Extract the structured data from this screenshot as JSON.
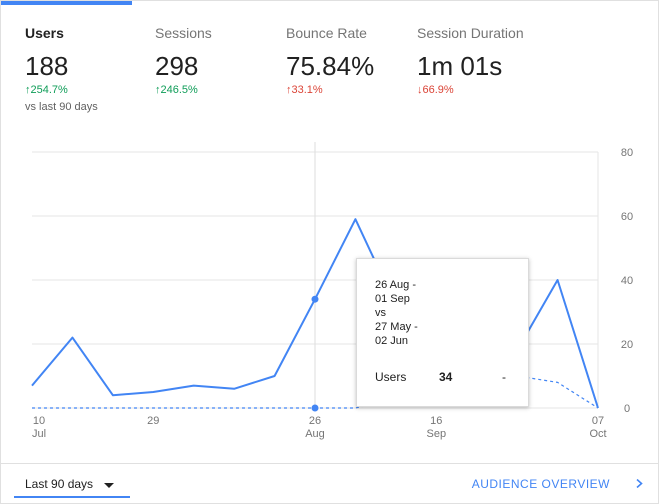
{
  "metrics": [
    {
      "label": "Users",
      "value": "188",
      "change": "↑254.7%",
      "active": true
    },
    {
      "label": "Sessions",
      "value": "298",
      "change": "↑246.5%",
      "active": false
    },
    {
      "label": "Bounce Rate",
      "value": "75.84%",
      "change": "↑33.1%",
      "active": false
    },
    {
      "label": "Session Duration",
      "value": "1m 01s",
      "change": "↓66.9%",
      "active": false
    }
  ],
  "compare_text": "vs last 90 days",
  "colors": {
    "accent": "#4285f4",
    "positive": "#0f9d58",
    "negative": "#db4437",
    "grid": "#e6e6e6"
  },
  "chart_data": {
    "type": "line",
    "x_tick_labels": [
      {
        "day": "10",
        "month": "Jul"
      },
      {
        "day": "29",
        "month": ""
      },
      {
        "day": "26",
        "month": "Aug"
      },
      {
        "day": "16",
        "month": "Sep"
      },
      {
        "day": "07",
        "month": "Oct"
      }
    ],
    "y_tick_labels": [
      "80",
      "60",
      "40",
      "20",
      "0"
    ],
    "ylim": [
      0,
      80
    ],
    "series": [
      {
        "name": "",
        "style": "solid",
        "values": [
          7,
          22,
          4,
          5,
          7,
          6,
          10,
          34,
          59,
          32,
          16,
          3,
          18,
          40,
          0
        ]
      },
      {
        "name": "",
        "style": "dashed",
        "values": [
          0,
          0,
          0,
          0,
          0,
          0,
          0,
          0,
          0,
          3,
          6,
          9,
          10,
          8,
          0
        ]
      }
    ],
    "highlight_index": 7
  },
  "tooltip": {
    "line1": "26 Aug -",
    "line2": "01 Sep",
    "line3": "vs",
    "line4": "27 May -",
    "line5": "02 Jun",
    "metric_label": "Users",
    "metric_value": "34",
    "metric_change": "-"
  },
  "footer": {
    "date_range": "Last 90 days",
    "link_label": "AUDIENCE OVERVIEW"
  },
  "icons": {
    "dropdown": "caret-down-icon",
    "link": "chevron-right-icon"
  }
}
